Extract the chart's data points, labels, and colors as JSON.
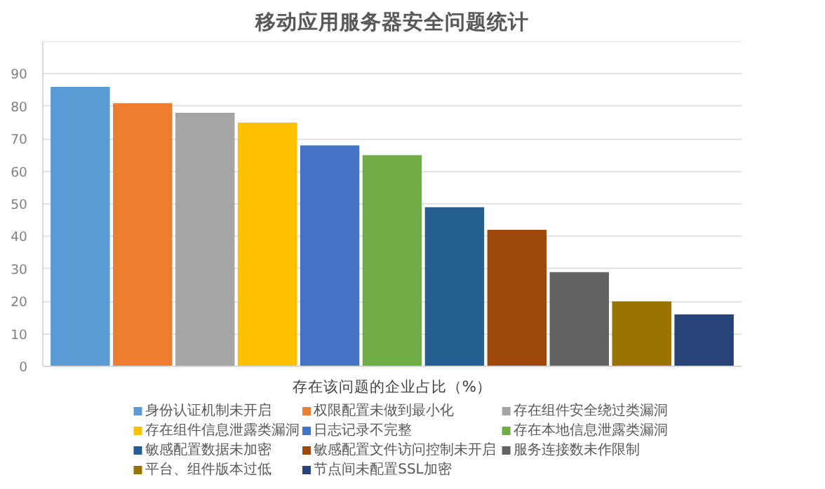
{
  "chart_data": {
    "type": "bar",
    "title": "移动应用服务器安全问题统计",
    "xlabel": "存在该问题的企业占比（%）",
    "categories": [
      null,
      null,
      null,
      null,
      null,
      null,
      null,
      null,
      null,
      null,
      null
    ],
    "series": [
      {
        "name": "身份认证机制未开启",
        "color": "#5b9bd5",
        "values": [
          86,
          null,
          null,
          null,
          null,
          null,
          null,
          null,
          null,
          null,
          null
        ]
      },
      {
        "name": "权限配置未做到最小化",
        "color": "#ed7d31",
        "values": [
          null,
          81,
          null,
          null,
          null,
          null,
          null,
          null,
          null,
          null,
          null
        ]
      },
      {
        "name": "存在组件安全绕过类漏洞",
        "color": "#a5a5a5",
        "values": [
          null,
          null,
          78,
          null,
          null,
          null,
          null,
          null,
          null,
          null,
          null
        ]
      },
      {
        "name": "存在组件信息泄露类漏洞",
        "color": "#ffc000",
        "values": [
          null,
          null,
          null,
          75,
          null,
          null,
          null,
          null,
          null,
          null,
          null
        ]
      },
      {
        "name": "日志记录不完整",
        "color": "#4472c4",
        "values": [
          null,
          null,
          null,
          null,
          68,
          null,
          null,
          null,
          null,
          null,
          null
        ]
      },
      {
        "name": "存在本地信息泄露类漏洞",
        "color": "#70ad47",
        "values": [
          null,
          null,
          null,
          null,
          null,
          65,
          null,
          null,
          null,
          null,
          null
        ]
      },
      {
        "name": "敏感配置数据未加密",
        "color": "#255e91",
        "values": [
          null,
          null,
          null,
          null,
          null,
          null,
          49,
          null,
          null,
          null,
          null
        ]
      },
      {
        "name": "敏感配置文件访问控制未开启",
        "color": "#9e480e",
        "values": [
          null,
          null,
          null,
          null,
          null,
          null,
          null,
          42,
          null,
          null,
          null
        ]
      },
      {
        "name": "服务连接数未作限制",
        "color": "#636363",
        "values": [
          null,
          null,
          null,
          null,
          null,
          null,
          null,
          null,
          29,
          null,
          null
        ]
      },
      {
        "name": "平台、组件版本过低",
        "color": "#997300",
        "values": [
          null,
          null,
          null,
          null,
          null,
          null,
          null,
          null,
          null,
          20,
          null
        ]
      },
      {
        "name": "节点间未配置SSL加密",
        "color": "#264478",
        "values": [
          null,
          null,
          null,
          null,
          null,
          null,
          null,
          null,
          null,
          null,
          16
        ]
      }
    ],
    "ylim": [
      0,
      100
    ],
    "yticks": [
      0,
      10,
      20,
      30,
      40,
      50,
      60,
      70,
      80,
      90,
      {
        "value": 100,
        "label": null
      }
    ],
    "grid": "y",
    "legend": "bottom",
    "tick_labels": "y"
  }
}
